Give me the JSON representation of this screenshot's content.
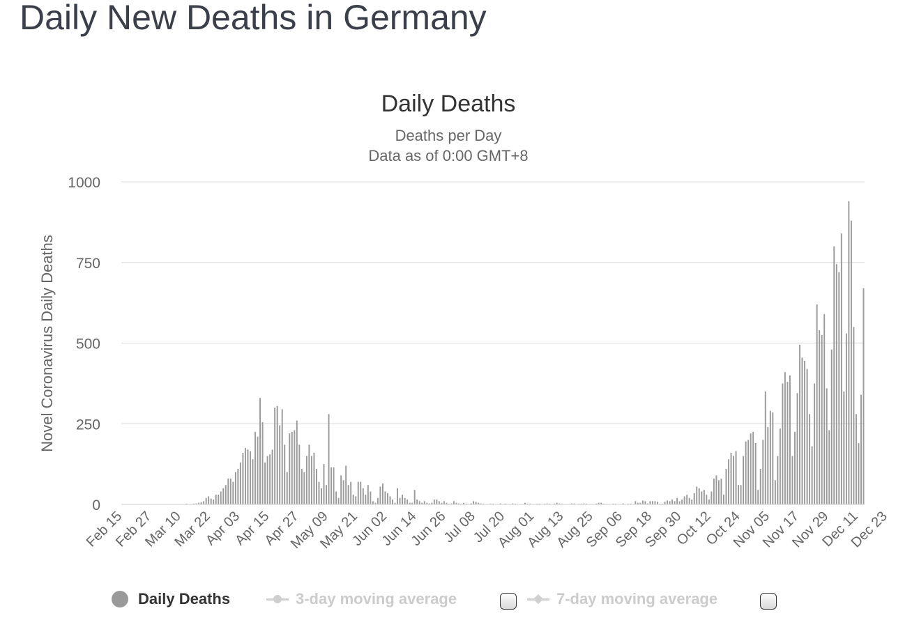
{
  "page_title": "Daily New Deaths in Germany",
  "colors": {
    "bar": "#9a9a9a",
    "grid": "#e6e6e6",
    "axis_text": "#666666",
    "title_text": "#333333",
    "legend_active": "#333333",
    "legend_inactive": "#cccccc"
  },
  "legend": {
    "daily": "Daily Deaths",
    "ma3": "3-day moving average",
    "ma7": "7-day moving average"
  },
  "chart_data": {
    "type": "bar",
    "title": "Daily Deaths",
    "subtitle": "Deaths per Day",
    "subtitle2": "Data as of 0:00 GMT+8",
    "xlabel": "",
    "ylabel": "Novel Coronavirus Daily Deaths",
    "ylim": [
      0,
      1000
    ],
    "yticks": [
      0,
      250,
      500,
      750,
      1000
    ],
    "grid": true,
    "legend_position": "bottom",
    "x_start": "Feb 15",
    "x_end": "Dec 28",
    "xticks": [
      "Feb 15",
      "Feb 27",
      "Mar 10",
      "Mar 22",
      "Apr 03",
      "Apr 15",
      "Apr 27",
      "May 09",
      "May 21",
      "Jun 02",
      "Jun 14",
      "Jun 26",
      "Jul 08",
      "Jul 20",
      "Aug 01",
      "Aug 13",
      "Aug 25",
      "Sep 06",
      "Sep 18",
      "Sep 30",
      "Oct 12",
      "Oct 24",
      "Nov 05",
      "Nov 17",
      "Nov 29",
      "Dec 11",
      "Dec 23"
    ],
    "series": [
      {
        "name": "Daily Deaths",
        "values": [
          0,
          0,
          0,
          0,
          0,
          0,
          0,
          0,
          0,
          0,
          0,
          0,
          0,
          0,
          0,
          0,
          0,
          0,
          0,
          0,
          0,
          0,
          0,
          0,
          0,
          0,
          2,
          0,
          1,
          2,
          3,
          5,
          7,
          10,
          20,
          25,
          18,
          15,
          30,
          30,
          40,
          50,
          60,
          80,
          80,
          70,
          100,
          110,
          130,
          160,
          175,
          170,
          165,
          140,
          225,
          210,
          330,
          255,
          130,
          150,
          155,
          170,
          300,
          305,
          245,
          295,
          185,
          100,
          220,
          225,
          230,
          260,
          185,
          110,
          100,
          150,
          185,
          150,
          160,
          110,
          70,
          50,
          125,
          60,
          280,
          115,
          115,
          40,
          20,
          90,
          75,
          120,
          60,
          70,
          30,
          25,
          70,
          70,
          50,
          30,
          60,
          40,
          10,
          5,
          20,
          55,
          65,
          40,
          35,
          25,
          15,
          5,
          50,
          20,
          30,
          20,
          15,
          5,
          5,
          45,
          15,
          10,
          5,
          10,
          5,
          3,
          5,
          15,
          15,
          10,
          5,
          10,
          5,
          2,
          3,
          10,
          5,
          3,
          2,
          5,
          2,
          1,
          3,
          10,
          8,
          5,
          3,
          2,
          1,
          1,
          2,
          2,
          1,
          1,
          3,
          1,
          2,
          1,
          1,
          3,
          2,
          1,
          1,
          1,
          5,
          2,
          2,
          1,
          1,
          2,
          2,
          1,
          2,
          3,
          2,
          1,
          2,
          5,
          3,
          2,
          1,
          1,
          1,
          3,
          3,
          1,
          2,
          2,
          3,
          2,
          1,
          1,
          1,
          2,
          5,
          5,
          2,
          1,
          1,
          1,
          2,
          2,
          1,
          1,
          3,
          1,
          2,
          2,
          1,
          10,
          5,
          5,
          12,
          10,
          3,
          10,
          10,
          10,
          8,
          2,
          2,
          8,
          12,
          10,
          15,
          10,
          20,
          10,
          15,
          25,
          30,
          20,
          15,
          35,
          55,
          50,
          40,
          45,
          30,
          15,
          40,
          80,
          90,
          75,
          80,
          30,
          110,
          140,
          160,
          150,
          165,
          60,
          60,
          150,
          195,
          200,
          220,
          225,
          190,
          45,
          110,
          200,
          350,
          240,
          290,
          285,
          75,
          150,
          235,
          375,
          410,
          380,
          400,
          150,
          225,
          345,
          495,
          455,
          445,
          420,
          280,
          180,
          375,
          620,
          540,
          525,
          590,
          360,
          230,
          480,
          800,
          745,
          720,
          840,
          350,
          530,
          940,
          880,
          550,
          280,
          190,
          340,
          670
        ]
      }
    ]
  }
}
